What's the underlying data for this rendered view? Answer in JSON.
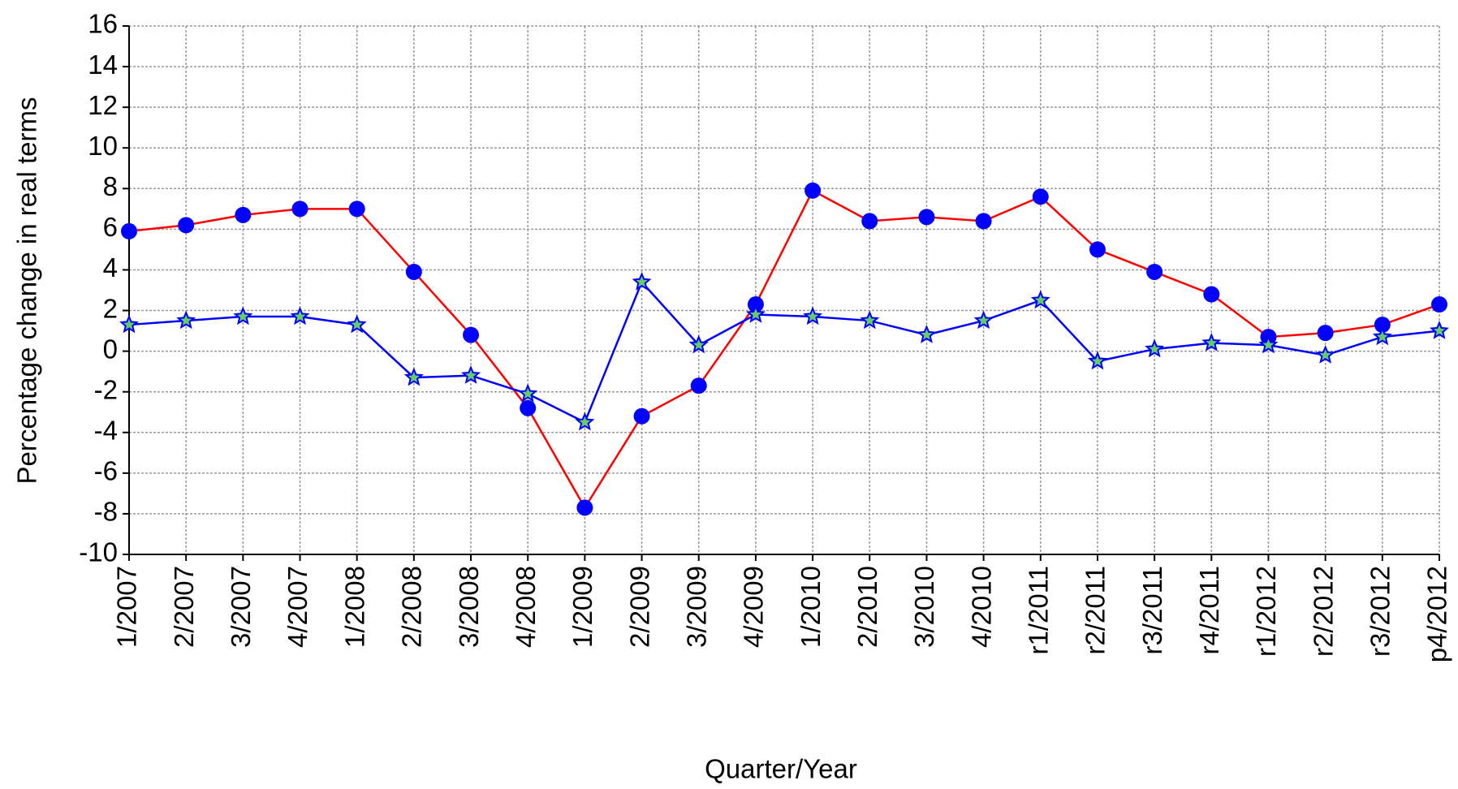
{
  "chart_data": {
    "type": "line",
    "xlabel": "Quarter/Year",
    "ylabel": "Percentage change in real terms",
    "categories": [
      "1/2007",
      "2/2007",
      "3/2007",
      "4/2007",
      "1/2008",
      "2/2008",
      "3/2008",
      "4/2008",
      "1/2009",
      "2/2009",
      "3/2009",
      "4/2009",
      "1/2010",
      "2/2010",
      "3/2010",
      "4/2010",
      "r1/2011",
      "r2/2011",
      "r3/2011",
      "r4/2011",
      "r1/2012",
      "r2/2012",
      "r3/2012",
      "p4/2012"
    ],
    "series": [
      {
        "color": "#ff0000",
        "marker": "circle",
        "marker_color": "#0000ff",
        "values": [
          5.9,
          6.2,
          6.7,
          7.0,
          7.0,
          3.9,
          0.8,
          -2.8,
          -7.7,
          -3.2,
          -1.7,
          2.3,
          7.9,
          6.4,
          6.6,
          6.4,
          7.6,
          5.0,
          3.9,
          2.8,
          0.7,
          0.9,
          1.3,
          2.3
        ]
      },
      {
        "color": "#0000ff",
        "marker": "star",
        "marker_color": "#66cc66",
        "values": [
          1.3,
          1.5,
          1.7,
          1.7,
          1.3,
          -1.3,
          -1.2,
          -2.1,
          -3.5,
          3.4,
          0.3,
          1.8,
          1.7,
          1.5,
          0.8,
          1.5,
          2.5,
          -0.5,
          0.1,
          0.4,
          0.3,
          -0.2,
          0.7,
          1.0
        ]
      }
    ],
    "ylim": [
      -10,
      16
    ],
    "yticks": [
      -10,
      -8,
      -6,
      -4,
      -2,
      0,
      2,
      4,
      6,
      8,
      10,
      12,
      14,
      16
    ],
    "grid": true
  }
}
